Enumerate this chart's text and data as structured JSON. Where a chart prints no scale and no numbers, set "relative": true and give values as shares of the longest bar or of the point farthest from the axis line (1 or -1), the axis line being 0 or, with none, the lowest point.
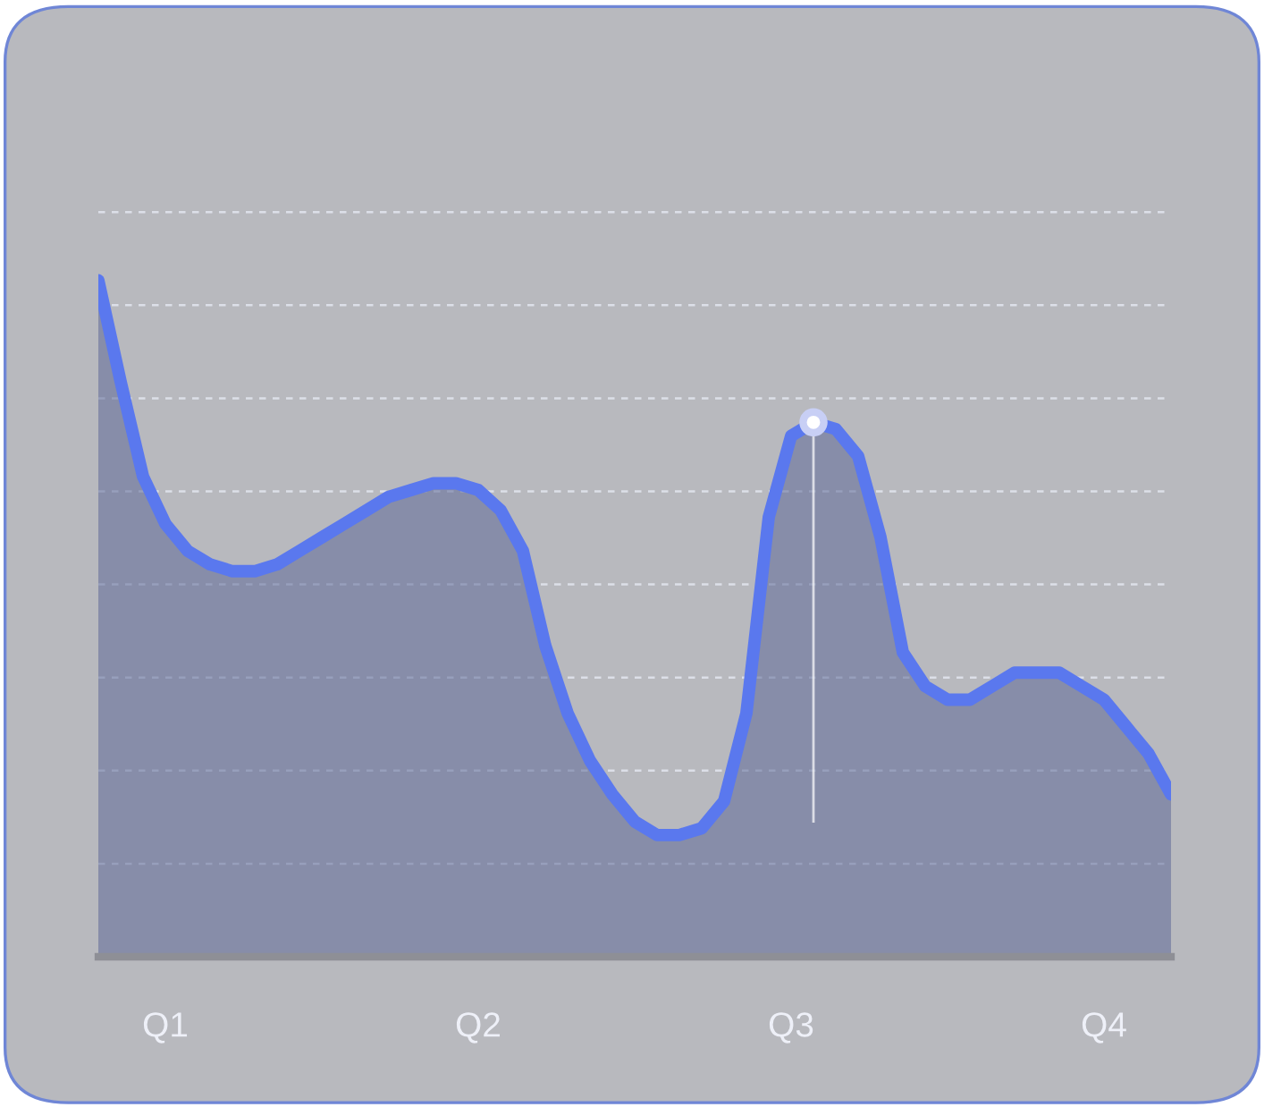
{
  "chart_data": {
    "type": "area",
    "relative": true,
    "grid": "y",
    "categories": [
      null,
      null,
      null,
      "Q1",
      null,
      null,
      null,
      null,
      null,
      null,
      null,
      null,
      null,
      null,
      null,
      null,
      null,
      "Q2",
      null,
      null,
      null,
      null,
      null,
      null,
      null,
      null,
      null,
      null,
      null,
      null,
      null,
      "Q3",
      null,
      null,
      null,
      null,
      null,
      null,
      null,
      null,
      null,
      null,
      null,
      null,
      null,
      "Q4",
      null,
      null,
      null
    ],
    "series": [
      {
        "color": "#5a78ee",
        "values": [
          1.0,
          0.85,
          0.71,
          0.64,
          0.6,
          0.58,
          0.57,
          0.57,
          0.58,
          0.6,
          0.62,
          0.64,
          0.66,
          0.68,
          0.69,
          0.7,
          0.7,
          0.69,
          0.66,
          0.6,
          0.46,
          0.36,
          0.29,
          0.24,
          0.2,
          0.18,
          0.18,
          0.19,
          0.23,
          0.36,
          0.65,
          0.77,
          0.79,
          0.78,
          0.74,
          0.62,
          0.45,
          0.4,
          0.38,
          0.38,
          0.4,
          0.42,
          0.42,
          0.42,
          0.4,
          0.38,
          0.34,
          0.3,
          0.24
        ]
      },
      {
        "type": "scatter",
        "color": "#ffffff",
        "values": [
          null,
          null,
          null,
          null,
          null,
          null,
          null,
          null,
          null,
          null,
          null,
          null,
          null,
          null,
          null,
          null,
          null,
          null,
          null,
          null,
          null,
          null,
          null,
          null,
          null,
          null,
          null,
          null,
          null,
          null,
          null,
          null,
          0.79,
          null,
          null,
          null,
          null,
          null,
          null,
          null,
          null,
          null,
          null,
          null,
          null,
          null,
          null,
          null,
          null
        ]
      }
    ]
  }
}
